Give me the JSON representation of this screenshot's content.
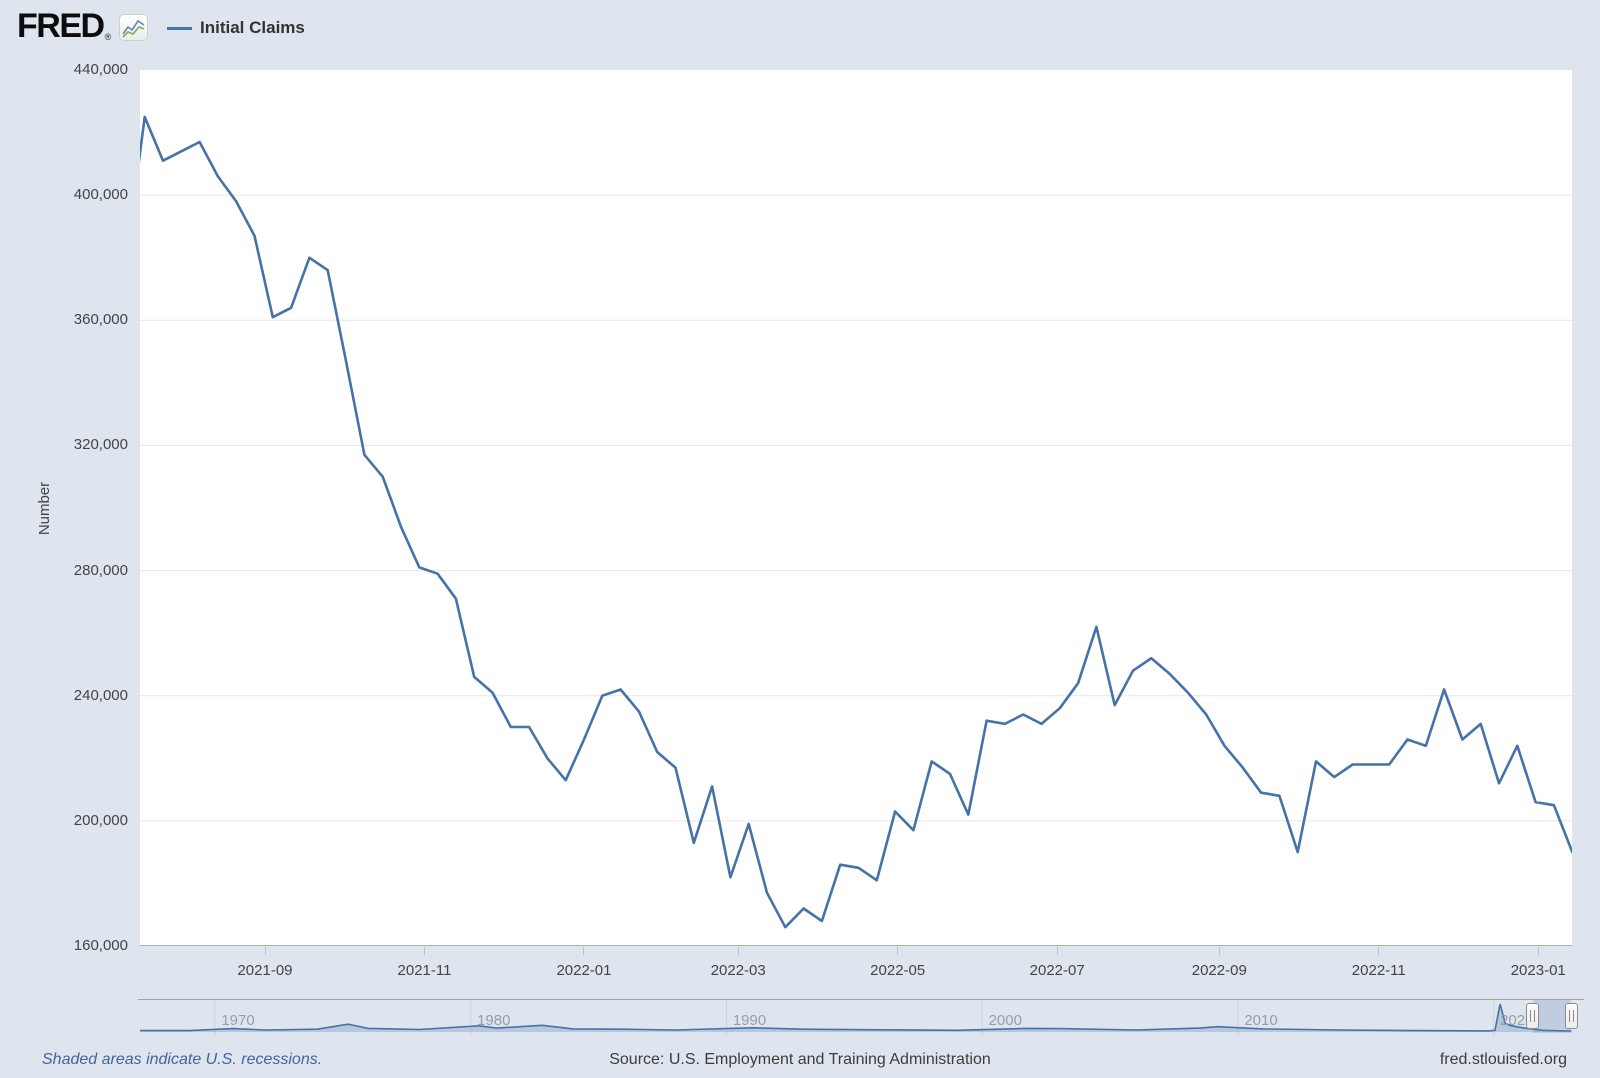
{
  "colors": {
    "background": "#dee5ee",
    "accent_line": "#4572a7",
    "gridline": "#e7e7e7",
    "axis_text": "#444444",
    "minimap_text": "#989ea6"
  },
  "header": {
    "logo_text": "FRED",
    "registered_mark": "®",
    "legend": {
      "series_label": "Initial Claims",
      "swatch_color": "#4572a7"
    }
  },
  "chart_data": {
    "type": "line",
    "title": "Initial Claims",
    "ylabel": "Number",
    "xlabel": "",
    "grid": "horizontal",
    "legend_position": "top-left",
    "y_axis": {
      "min": 160000,
      "max": 440000,
      "tick_step": 40000,
      "tick_labels": [
        "440,000",
        "400,000",
        "360,000",
        "320,000",
        "280,000",
        "240,000",
        "200,000",
        "160,000"
      ]
    },
    "x_tick_labels": [
      "2021-09",
      "2021-11",
      "2022-01",
      "2022-03",
      "2022-05",
      "2022-07",
      "2022-09",
      "2022-11",
      "2023-01"
    ],
    "series": [
      {
        "name": "Initial Claims",
        "color": "#4572a7",
        "units": "Number",
        "points": [
          [
            "2021-07-10",
            380000
          ],
          [
            "2021-07-17",
            425000
          ],
          [
            "2021-07-24",
            411000
          ],
          [
            "2021-07-31",
            414000
          ],
          [
            "2021-08-07",
            417000
          ],
          [
            "2021-08-14",
            406000
          ],
          [
            "2021-08-21",
            398000
          ],
          [
            "2021-08-28",
            387000
          ],
          [
            "2021-09-04",
            361000
          ],
          [
            "2021-09-11",
            364000
          ],
          [
            "2021-09-18",
            380000
          ],
          [
            "2021-09-25",
            376000
          ],
          [
            "2021-10-02",
            347000
          ],
          [
            "2021-10-09",
            317000
          ],
          [
            "2021-10-16",
            310000
          ],
          [
            "2021-10-23",
            294000
          ],
          [
            "2021-10-30",
            281000
          ],
          [
            "2021-11-06",
            279000
          ],
          [
            "2021-11-13",
            271000
          ],
          [
            "2021-11-20",
            246000
          ],
          [
            "2021-11-27",
            241000
          ],
          [
            "2021-12-04",
            230000
          ],
          [
            "2021-12-11",
            230000
          ],
          [
            "2021-12-18",
            220000
          ],
          [
            "2021-12-25",
            213000
          ],
          [
            "2022-01-01",
            226000
          ],
          [
            "2022-01-08",
            240000
          ],
          [
            "2022-01-15",
            242000
          ],
          [
            "2022-01-22",
            235000
          ],
          [
            "2022-01-29",
            222000
          ],
          [
            "2022-02-05",
            217000
          ],
          [
            "2022-02-12",
            193000
          ],
          [
            "2022-02-19",
            211000
          ],
          [
            "2022-02-26",
            182000
          ],
          [
            "2022-03-05",
            199000
          ],
          [
            "2022-03-12",
            177000
          ],
          [
            "2022-03-19",
            166000
          ],
          [
            "2022-03-26",
            172000
          ],
          [
            "2022-04-02",
            168000
          ],
          [
            "2022-04-09",
            186000
          ],
          [
            "2022-04-16",
            185000
          ],
          [
            "2022-04-23",
            181000
          ],
          [
            "2022-04-30",
            203000
          ],
          [
            "2022-05-07",
            197000
          ],
          [
            "2022-05-14",
            219000
          ],
          [
            "2022-05-21",
            215000
          ],
          [
            "2022-05-28",
            202000
          ],
          [
            "2022-06-04",
            232000
          ],
          [
            "2022-06-11",
            231000
          ],
          [
            "2022-06-18",
            234000
          ],
          [
            "2022-06-25",
            231000
          ],
          [
            "2022-07-02",
            236000
          ],
          [
            "2022-07-09",
            244000
          ],
          [
            "2022-07-16",
            262000
          ],
          [
            "2022-07-23",
            237000
          ],
          [
            "2022-07-30",
            248000
          ],
          [
            "2022-08-06",
            252000
          ],
          [
            "2022-08-13",
            247000
          ],
          [
            "2022-08-20",
            241000
          ],
          [
            "2022-08-27",
            234000
          ],
          [
            "2022-09-03",
            224000
          ],
          [
            "2022-09-10",
            217000
          ],
          [
            "2022-09-17",
            209000
          ],
          [
            "2022-09-24",
            208000
          ],
          [
            "2022-10-01",
            190000
          ],
          [
            "2022-10-08",
            219000
          ],
          [
            "2022-10-15",
            214000
          ],
          [
            "2022-10-22",
            218000
          ],
          [
            "2022-10-29",
            218000
          ],
          [
            "2022-11-05",
            218000
          ],
          [
            "2022-11-12",
            226000
          ],
          [
            "2022-11-19",
            224000
          ],
          [
            "2022-11-26",
            242000
          ],
          [
            "2022-12-03",
            226000
          ],
          [
            "2022-12-10",
            231000
          ],
          [
            "2022-12-17",
            212000
          ],
          [
            "2022-12-24",
            224000
          ],
          [
            "2022-12-31",
            206000
          ],
          [
            "2023-01-07",
            205000
          ],
          [
            "2023-01-14",
            190000
          ]
        ]
      }
    ]
  },
  "minimap": {
    "decade_labels": [
      "1970",
      "1980",
      "1990",
      "2000",
      "2010",
      "2020"
    ],
    "selection_years": {
      "start": 2021.53,
      "end": 2023.04
    },
    "profile": [
      [
        1967.07,
        0.05
      ],
      [
        1969,
        0.05
      ],
      [
        1970.7,
        0.12
      ],
      [
        1972,
        0.07
      ],
      [
        1974,
        0.1
      ],
      [
        1975.2,
        0.28
      ],
      [
        1976,
        0.13
      ],
      [
        1978,
        0.09
      ],
      [
        1980.3,
        0.22
      ],
      [
        1981,
        0.14
      ],
      [
        1982.8,
        0.24
      ],
      [
        1984,
        0.11
      ],
      [
        1986,
        0.1
      ],
      [
        1988,
        0.07
      ],
      [
        1991,
        0.15
      ],
      [
        1993,
        0.1
      ],
      [
        1996,
        0.08
      ],
      [
        1999,
        0.06
      ],
      [
        2001.7,
        0.13
      ],
      [
        2003,
        0.12
      ],
      [
        2006,
        0.07
      ],
      [
        2008.5,
        0.14
      ],
      [
        2009.2,
        0.19
      ],
      [
        2011,
        0.11
      ],
      [
        2014,
        0.07
      ],
      [
        2017,
        0.05
      ],
      [
        2019.8,
        0.04
      ],
      [
        2020.05,
        0.06
      ],
      [
        2020.25,
        1.0
      ],
      [
        2020.45,
        0.3
      ],
      [
        2020.7,
        0.22
      ],
      [
        2021.0,
        0.17
      ],
      [
        2021.3,
        0.13
      ],
      [
        2021.6,
        0.1
      ],
      [
        2021.9,
        0.06
      ],
      [
        2022.3,
        0.05
      ],
      [
        2022.7,
        0.04
      ],
      [
        2023.04,
        0.035
      ]
    ]
  },
  "footer": {
    "recessions_note": "Shaded areas indicate U.S. recessions.",
    "source": "Source: U.S. Employment and Training Administration",
    "site": "fred.stlouisfed.org"
  }
}
